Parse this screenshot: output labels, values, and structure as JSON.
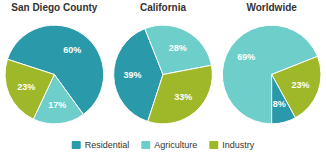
{
  "chart_data": [
    {
      "type": "pie",
      "title": "San Diego County",
      "categories": [
        "Residential",
        "Agriculture",
        "Industry"
      ],
      "values": [
        60,
        17,
        23
      ],
      "value_labels": [
        "60%",
        "17%",
        "23%"
      ],
      "colors": [
        "#2a9aaa",
        "#6ecfca",
        "#9fb82a"
      ],
      "data_labels": true,
      "legend": "bottom"
    },
    {
      "type": "pie",
      "title": "California",
      "categories": [
        "Residential",
        "Agriculture",
        "Industry"
      ],
      "values": [
        39,
        28,
        33
      ],
      "value_labels": [
        "39%",
        "28%",
        "33%"
      ],
      "colors": [
        "#2a9aaa",
        "#6ecfca",
        "#9fb82a"
      ],
      "data_labels": true,
      "legend": "bottom"
    },
    {
      "type": "pie",
      "title": "Worldwide",
      "categories": [
        "Agriculture",
        "Industry",
        "Residential"
      ],
      "values": [
        69,
        23,
        8
      ],
      "value_labels": [
        "69%",
        "23%",
        "8%"
      ],
      "colors": [
        "#6ecfca",
        "#9fb82a",
        "#2a9aaa"
      ],
      "data_labels": true,
      "legend": "bottom"
    }
  ]
}
